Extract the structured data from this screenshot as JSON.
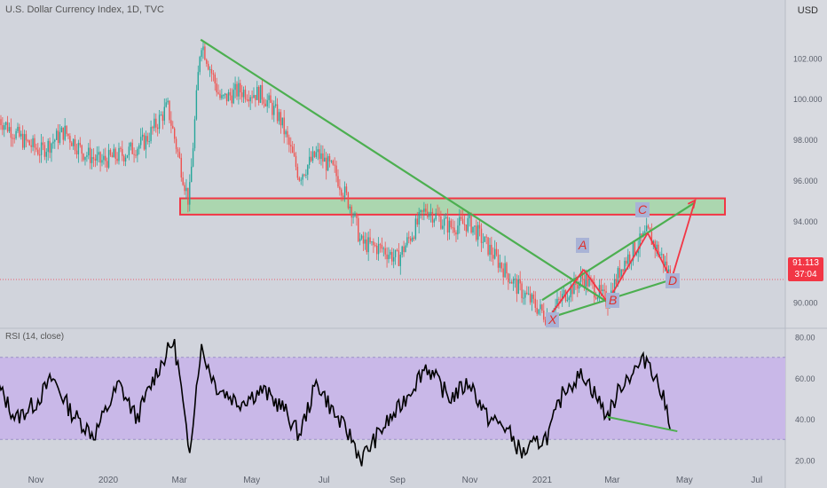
{
  "header": {
    "title": "U.S. Dollar Currency Index, 1D, TVC",
    "currency": "USD"
  },
  "rsi": {
    "title": "RSI (14, close)"
  },
  "price_badge": {
    "price": "91.113",
    "countdown": "37:04"
  },
  "pattern_labels": {
    "x": "X",
    "a": "A",
    "b": "B",
    "c": "C",
    "d": "D"
  },
  "colors": {
    "up": "#26a69a",
    "down": "#ef5350",
    "green_line": "#4caf50",
    "red_line": "#f23645",
    "zone_fill": "#a5d6a7",
    "rsi_band": "#c9b8e8",
    "rsi_line": "#000000"
  },
  "chart_data": [
    {
      "type": "candlestick",
      "title": "U.S. Dollar Currency Index, 1D, TVC",
      "ylim": [
        88.8,
        104.5
      ],
      "yticks": [
        90,
        92,
        94,
        96,
        98,
        100,
        102
      ],
      "ytick_labels": [
        "90.000",
        "92.000",
        "94.000",
        "96.000",
        "98.000",
        "100.000",
        "102.000"
      ],
      "xticks": [
        "Nov",
        "2020",
        "Mar",
        "May",
        "Jul",
        "Sep",
        "Nov",
        "2021",
        "Mar",
        "May",
        "Jul"
      ],
      "close_path": [
        {
          "date": "2019-10-01",
          "close": 99.0
        },
        {
          "date": "2019-10-20",
          "close": 98.0
        },
        {
          "date": "2019-11-05",
          "close": 97.4
        },
        {
          "date": "2019-11-25",
          "close": 98.4
        },
        {
          "date": "2019-12-10",
          "close": 97.4
        },
        {
          "date": "2019-12-25",
          "close": 96.9
        },
        {
          "date": "2020-01-15",
          "close": 97.3
        },
        {
          "date": "2020-02-01",
          "close": 97.9
        },
        {
          "date": "2020-02-20",
          "close": 99.6
        },
        {
          "date": "2020-03-09",
          "close": 94.9
        },
        {
          "date": "2020-03-19",
          "close": 102.9
        },
        {
          "date": "2020-04-05",
          "close": 99.9
        },
        {
          "date": "2020-04-20",
          "close": 100.4
        },
        {
          "date": "2020-05-10",
          "close": 100.2
        },
        {
          "date": "2020-05-25",
          "close": 99.0
        },
        {
          "date": "2020-06-10",
          "close": 96.2
        },
        {
          "date": "2020-06-25",
          "close": 97.3
        },
        {
          "date": "2020-07-10",
          "close": 96.4
        },
        {
          "date": "2020-07-25",
          "close": 94.5
        },
        {
          "date": "2020-08-01",
          "close": 92.9
        },
        {
          "date": "2020-08-20",
          "close": 92.6
        },
        {
          "date": "2020-09-01",
          "close": 92.1
        },
        {
          "date": "2020-09-25",
          "close": 94.6
        },
        {
          "date": "2020-10-15",
          "close": 93.7
        },
        {
          "date": "2020-11-01",
          "close": 93.9
        },
        {
          "date": "2020-11-20",
          "close": 92.4
        },
        {
          "date": "2020-12-10",
          "close": 90.8
        },
        {
          "date": "2021-01-06",
          "close": 89.2
        },
        {
          "date": "2021-01-20",
          "close": 90.4
        },
        {
          "date": "2021-02-05",
          "close": 91.2
        },
        {
          "date": "2021-02-25",
          "close": 90.0
        },
        {
          "date": "2021-03-10",
          "close": 91.9
        },
        {
          "date": "2021-03-31",
          "close": 93.4
        },
        {
          "date": "2021-04-12",
          "close": 92.2
        },
        {
          "date": "2021-04-20",
          "close": 91.1
        }
      ],
      "last_price": 91.113,
      "annotations": {
        "resistance_zone": [
          94.3,
          95.1
        ],
        "downtrend_line": [
          {
            "date": "2020-03-19",
            "value": 102.9
          },
          {
            "date": "2021-02-25",
            "value": 90.0
          }
        ],
        "channel_upper": [
          {
            "date": "2021-01-01",
            "value": 90.1
          },
          {
            "date": "2021-05-10",
            "value": 94.9
          }
        ],
        "channel_lower": [
          {
            "date": "2021-01-06",
            "value": 89.2
          },
          {
            "date": "2021-04-20",
            "value": 91.1
          }
        ],
        "xabcd": [
          {
            "point": "X",
            "date": "2021-01-06",
            "value": 89.2
          },
          {
            "point": "A",
            "date": "2021-02-05",
            "value": 91.6
          },
          {
            "point": "B",
            "date": "2021-02-25",
            "value": 90.0
          },
          {
            "point": "C",
            "date": "2021-03-31",
            "value": 93.4
          },
          {
            "point": "D",
            "date": "2021-04-20",
            "value": 91.1
          },
          {
            "point": "target",
            "date": "2021-05-10",
            "value": 95.0
          }
        ]
      }
    },
    {
      "type": "line",
      "title": "RSI (14, close)",
      "ylim": [
        15,
        82
      ],
      "yticks": [
        20,
        40,
        60,
        80
      ],
      "ytick_labels": [
        "20.00",
        "40.00",
        "60.00",
        "80.00"
      ],
      "band": [
        30,
        70
      ],
      "points": [
        {
          "date": "2019-10-01",
          "value": 55
        },
        {
          "date": "2019-10-15",
          "value": 40
        },
        {
          "date": "2019-11-01",
          "value": 48
        },
        {
          "date": "2019-11-15",
          "value": 60
        },
        {
          "date": "2019-12-01",
          "value": 43
        },
        {
          "date": "2019-12-20",
          "value": 32
        },
        {
          "date": "2020-01-10",
          "value": 57
        },
        {
          "date": "2020-01-25",
          "value": 40
        },
        {
          "date": "2020-02-10",
          "value": 62
        },
        {
          "date": "2020-02-25",
          "value": 78
        },
        {
          "date": "2020-03-01",
          "value": 62
        },
        {
          "date": "2020-03-09",
          "value": 22
        },
        {
          "date": "2020-03-19",
          "value": 75
        },
        {
          "date": "2020-04-01",
          "value": 56
        },
        {
          "date": "2020-04-20",
          "value": 48
        },
        {
          "date": "2020-05-10",
          "value": 54
        },
        {
          "date": "2020-05-28",
          "value": 45
        },
        {
          "date": "2020-06-10",
          "value": 32
        },
        {
          "date": "2020-06-25",
          "value": 58
        },
        {
          "date": "2020-07-10",
          "value": 42
        },
        {
          "date": "2020-07-25",
          "value": 30
        },
        {
          "date": "2020-08-01",
          "value": 20
        },
        {
          "date": "2020-08-20",
          "value": 36
        },
        {
          "date": "2020-09-01",
          "value": 44
        },
        {
          "date": "2020-09-25",
          "value": 66
        },
        {
          "date": "2020-10-15",
          "value": 50
        },
        {
          "date": "2020-11-01",
          "value": 58
        },
        {
          "date": "2020-11-15",
          "value": 41
        },
        {
          "date": "2020-12-01",
          "value": 36
        },
        {
          "date": "2020-12-15",
          "value": 23
        },
        {
          "date": "2021-01-06",
          "value": 32
        },
        {
          "date": "2021-01-20",
          "value": 55
        },
        {
          "date": "2021-02-05",
          "value": 62
        },
        {
          "date": "2021-02-25",
          "value": 41
        },
        {
          "date": "2021-03-10",
          "value": 58
        },
        {
          "date": "2021-03-31",
          "value": 70
        },
        {
          "date": "2021-04-12",
          "value": 52
        },
        {
          "date": "2021-04-20",
          "value": 37
        }
      ],
      "divergence_line": [
        {
          "date": "2021-02-25",
          "value": 41
        },
        {
          "date": "2021-04-25",
          "value": 34
        }
      ]
    }
  ]
}
